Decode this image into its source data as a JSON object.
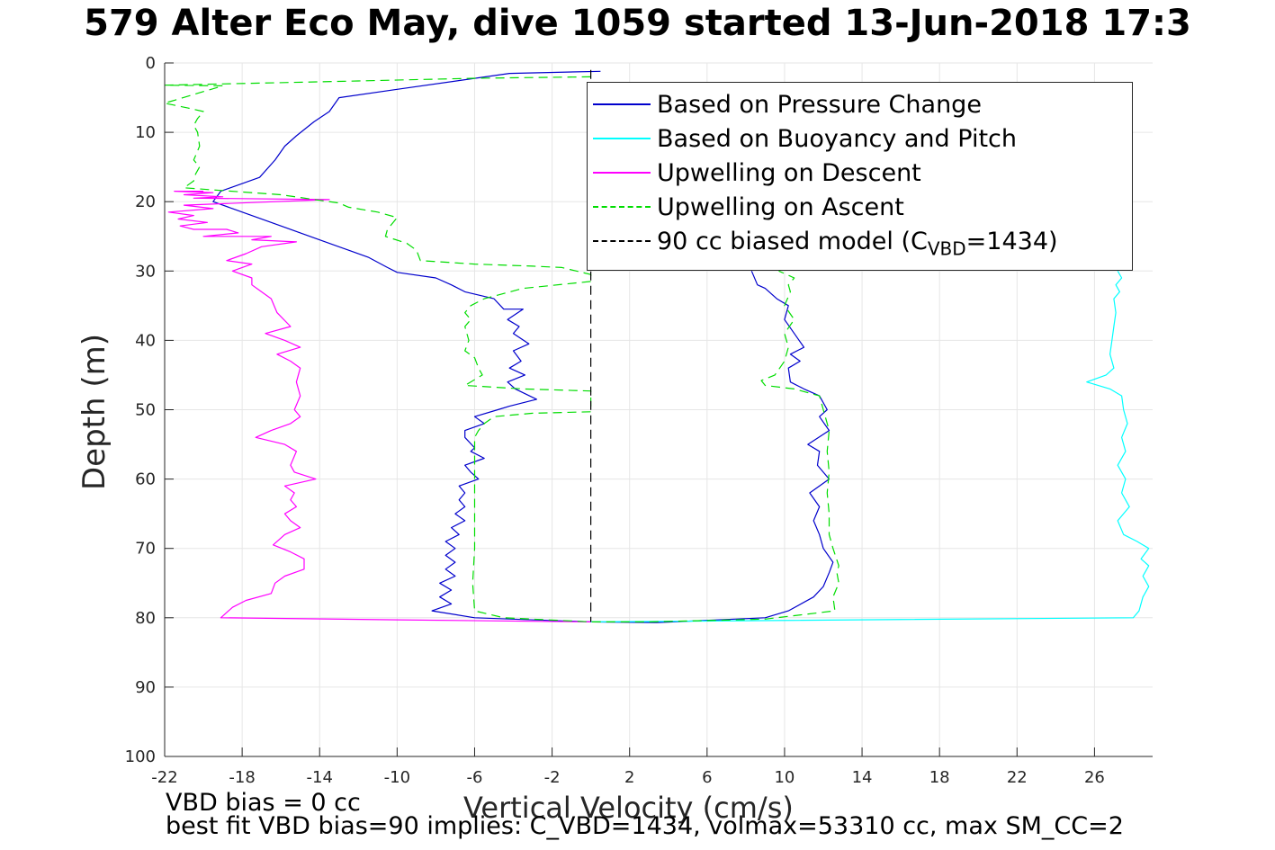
{
  "figure": {
    "title": "579 Alter Eco May, dive 1059 started 13-Jun-2018 17:3",
    "footnote_1": "VBD bias = 0 cc",
    "footnote_2": "best fit VBD bias=90 implies: C_VBD=1434, volmax=53310 cc, max SM_CC=2"
  },
  "chart_data": {
    "type": "line",
    "xlabel": "Vertical Velocity (cm/s)",
    "ylabel": "Depth (m)",
    "xlim": [
      -22,
      29
    ],
    "ylim": [
      0,
      100
    ],
    "y_reversed": true,
    "grid": true,
    "legend_position": "top-right",
    "xticks": [
      -22,
      -18,
      -14,
      -10,
      -6,
      -2,
      2,
      6,
      10,
      14,
      18,
      22,
      26
    ],
    "yticks": [
      0,
      10,
      20,
      30,
      40,
      50,
      60,
      70,
      80,
      90,
      100
    ],
    "series": [
      {
        "name": "Based on Pressure Change",
        "color": "#0000cc",
        "style": "solid",
        "points": [
          [
            0.5,
            1.2
          ],
          [
            -4.2,
            1.5
          ],
          [
            -10,
            3.8
          ],
          [
            -13,
            5
          ],
          [
            -13.5,
            7
          ],
          [
            -14.3,
            8.5
          ],
          [
            -15.2,
            10.5
          ],
          [
            -15.8,
            12
          ],
          [
            -16.3,
            14
          ],
          [
            -17.1,
            16.5
          ],
          [
            -19.1,
            18.5
          ],
          [
            -19.5,
            20
          ],
          [
            -18.5,
            21
          ],
          [
            -16.5,
            23
          ],
          [
            -14.5,
            25
          ],
          [
            -12.5,
            27
          ],
          [
            -11.5,
            28
          ],
          [
            -10.5,
            29.5
          ],
          [
            -10,
            30.2
          ],
          [
            -8,
            31
          ],
          [
            -7.2,
            32
          ],
          [
            -6.5,
            33
          ],
          [
            -5,
            34
          ],
          [
            -4.5,
            35.5
          ],
          [
            -3.5,
            35.5
          ],
          [
            -4.3,
            37
          ],
          [
            -3.7,
            38
          ],
          [
            -4,
            39
          ],
          [
            -3.2,
            40.5
          ],
          [
            -4,
            41.5
          ],
          [
            -3.6,
            43
          ],
          [
            -4.2,
            44
          ],
          [
            -3.4,
            45
          ],
          [
            -4.3,
            46
          ],
          [
            -3.9,
            47
          ],
          [
            -2.8,
            48.5
          ],
          [
            -4.2,
            49.5
          ],
          [
            -4.8,
            50
          ],
          [
            -6,
            51
          ],
          [
            -5.5,
            52
          ],
          [
            -6.5,
            53
          ],
          [
            -6.5,
            54
          ],
          [
            -6,
            55.5
          ],
          [
            -6.2,
            56
          ],
          [
            -5.5,
            57
          ],
          [
            -6.5,
            58
          ],
          [
            -6.2,
            59
          ],
          [
            -5.8,
            60
          ],
          [
            -6.8,
            61
          ],
          [
            -6.5,
            62
          ],
          [
            -6.8,
            63
          ],
          [
            -6.5,
            64
          ],
          [
            -7,
            65
          ],
          [
            -6.5,
            66
          ],
          [
            -7.2,
            67
          ],
          [
            -6.8,
            68
          ],
          [
            -7.5,
            69
          ],
          [
            -7,
            70
          ],
          [
            -7.5,
            71
          ],
          [
            -7,
            72
          ],
          [
            -7.5,
            73
          ],
          [
            -7,
            74
          ],
          [
            -7.8,
            75
          ],
          [
            -7.2,
            76
          ],
          [
            -7.8,
            77
          ],
          [
            -7.2,
            78
          ],
          [
            -8.2,
            79
          ],
          [
            -6,
            80
          ],
          [
            0,
            80.6
          ],
          [
            3.4,
            80.7
          ],
          [
            9,
            80
          ],
          [
            10.2,
            79
          ],
          [
            11.5,
            77
          ],
          [
            12,
            75.5
          ],
          [
            12.3,
            73.5
          ],
          [
            12.5,
            72
          ],
          [
            12,
            70
          ],
          [
            11.8,
            68
          ],
          [
            11.5,
            66
          ],
          [
            11.8,
            64
          ],
          [
            11.3,
            62
          ],
          [
            12.3,
            60
          ],
          [
            11.7,
            58
          ],
          [
            11.8,
            56
          ],
          [
            11.2,
            55
          ],
          [
            12.3,
            53
          ],
          [
            11.8,
            51
          ],
          [
            12.2,
            50
          ],
          [
            11.8,
            48
          ],
          [
            11,
            47
          ],
          [
            10.3,
            46
          ],
          [
            10.2,
            44
          ],
          [
            10.8,
            43
          ],
          [
            10.3,
            42
          ],
          [
            11,
            41
          ],
          [
            10.5,
            39
          ],
          [
            10,
            37
          ],
          [
            10.2,
            35
          ],
          [
            9.6,
            34
          ],
          [
            9,
            32.5
          ],
          [
            8.6,
            32
          ],
          [
            8.3,
            30
          ]
        ]
      },
      {
        "name": "Based on Buoyancy and Pitch",
        "color": "#00ffff",
        "style": "solid",
        "points": [
          [
            0,
            80.6
          ],
          [
            28,
            80
          ],
          [
            28.3,
            79
          ],
          [
            28.5,
            77
          ],
          [
            28.8,
            75.5
          ],
          [
            28.5,
            74
          ],
          [
            28.8,
            72.5
          ],
          [
            28.4,
            71.5
          ],
          [
            28.8,
            70
          ],
          [
            28.2,
            69
          ],
          [
            27.5,
            68
          ],
          [
            27.2,
            66
          ],
          [
            27.8,
            64
          ],
          [
            27.4,
            62
          ],
          [
            27.6,
            60
          ],
          [
            27.2,
            58
          ],
          [
            27.6,
            56
          ],
          [
            27.4,
            54
          ],
          [
            27.7,
            52
          ],
          [
            27.5,
            50
          ],
          [
            27.4,
            48
          ],
          [
            26.8,
            47
          ],
          [
            25.6,
            46
          ],
          [
            26.6,
            45
          ],
          [
            27,
            44
          ],
          [
            26.8,
            42
          ],
          [
            26.9,
            40
          ],
          [
            27,
            38
          ],
          [
            27.1,
            36
          ],
          [
            27,
            34
          ],
          [
            27.3,
            33
          ],
          [
            27.1,
            32
          ],
          [
            27.4,
            31
          ],
          [
            27.2,
            30
          ]
        ]
      },
      {
        "name": "Upwelling on Descent",
        "color": "#ff00ff",
        "style": "solid",
        "points": [
          [
            -20,
            18.5
          ],
          [
            -21.5,
            18.5
          ],
          [
            -19.5,
            18.7
          ],
          [
            -21,
            19
          ],
          [
            -19,
            19.3
          ],
          [
            -20.5,
            19.5
          ],
          [
            -13.5,
            19.7
          ],
          [
            -21,
            20.5
          ],
          [
            -19.5,
            21
          ],
          [
            -21.8,
            21.5
          ],
          [
            -20.5,
            22
          ],
          [
            -21.3,
            22.5
          ],
          [
            -19.8,
            23
          ],
          [
            -21.2,
            23.5
          ],
          [
            -20.5,
            24
          ],
          [
            -18.8,
            24
          ],
          [
            -18.2,
            24.5
          ],
          [
            -20,
            25
          ],
          [
            -16.5,
            25
          ],
          [
            -17.5,
            25.5
          ],
          [
            -15.2,
            25.8
          ],
          [
            -17,
            26.5
          ],
          [
            -17.8,
            27.5
          ],
          [
            -18.8,
            28.5
          ],
          [
            -17.5,
            29
          ],
          [
            -18.5,
            30
          ],
          [
            -17.5,
            31
          ],
          [
            -17.5,
            32
          ],
          [
            -17,
            33
          ],
          [
            -16.5,
            34
          ],
          [
            -16.2,
            36
          ],
          [
            -15.5,
            38
          ],
          [
            -16.8,
            39
          ],
          [
            -15.8,
            40
          ],
          [
            -15,
            41
          ],
          [
            -16.2,
            42
          ],
          [
            -15.5,
            43
          ],
          [
            -15,
            44
          ],
          [
            -15.2,
            46
          ],
          [
            -15,
            48
          ],
          [
            -15.3,
            50
          ],
          [
            -15,
            51
          ],
          [
            -15.5,
            52
          ],
          [
            -16.5,
            53
          ],
          [
            -17.3,
            54
          ],
          [
            -15.8,
            55
          ],
          [
            -15.2,
            56
          ],
          [
            -15.5,
            58
          ],
          [
            -15.3,
            59
          ],
          [
            -14.2,
            60
          ],
          [
            -15.8,
            61
          ],
          [
            -15.3,
            62
          ],
          [
            -15.5,
            63
          ],
          [
            -15.2,
            64
          ],
          [
            -15.8,
            65
          ],
          [
            -15.5,
            66
          ],
          [
            -15,
            67
          ],
          [
            -15.8,
            68
          ],
          [
            -16.4,
            69.5
          ],
          [
            -15.5,
            70.5
          ],
          [
            -14.8,
            71.5
          ],
          [
            -14.8,
            73
          ],
          [
            -15.8,
            74
          ],
          [
            -16.3,
            75
          ],
          [
            -16.5,
            76.5
          ],
          [
            -17.8,
            77.5
          ],
          [
            -18.5,
            78.5
          ],
          [
            -19.1,
            80
          ],
          [
            -10,
            80.3
          ],
          [
            0,
            80.6
          ]
        ]
      },
      {
        "name": "Upwelling on Ascent",
        "color": "#00dd00",
        "style": "dashed",
        "points": [
          [
            0,
            2
          ],
          [
            -6,
            2.2
          ],
          [
            -12,
            2.6
          ],
          [
            -22,
            3.2
          ],
          [
            -19,
            3.3
          ],
          [
            -22,
            5.8
          ],
          [
            -20.8,
            6.5
          ],
          [
            -20,
            7
          ],
          [
            -20.3,
            8
          ],
          [
            -20.5,
            9
          ],
          [
            -20.3,
            10
          ],
          [
            -20.2,
            12
          ],
          [
            -20.5,
            14
          ],
          [
            -20.2,
            15
          ],
          [
            -20.4,
            16
          ],
          [
            -20.5,
            17
          ],
          [
            -21,
            18
          ],
          [
            -16,
            19
          ],
          [
            -14,
            19.8
          ],
          [
            -13,
            20.2
          ],
          [
            -12.5,
            20.8
          ],
          [
            -11,
            21.5
          ],
          [
            -10,
            22.3
          ],
          [
            -10.2,
            23
          ],
          [
            -10.5,
            24
          ],
          [
            -10.6,
            25
          ],
          [
            -9.5,
            26
          ],
          [
            -9,
            27
          ],
          [
            -8.8,
            28.5
          ],
          [
            -6,
            29
          ],
          [
            -3,
            29.3
          ],
          [
            -1.5,
            29.5
          ],
          [
            0,
            30.5
          ],
          [
            0,
            31.5
          ],
          [
            -3.5,
            32.5
          ],
          [
            -5.5,
            34
          ],
          [
            -6.2,
            35
          ],
          [
            -6.5,
            36
          ],
          [
            -6.2,
            37
          ],
          [
            -6.5,
            38
          ],
          [
            -6.3,
            40
          ],
          [
            -6.5,
            41.5
          ],
          [
            -6,
            42.5
          ],
          [
            -5.8,
            44
          ],
          [
            -5.6,
            45
          ],
          [
            -6.5,
            46.5
          ],
          [
            -3.5,
            47
          ],
          [
            0,
            47.3
          ],
          [
            0,
            50.3
          ],
          [
            -3,
            50.5
          ],
          [
            -5,
            51
          ],
          [
            -5.5,
            52
          ],
          [
            -5.8,
            53
          ],
          [
            -6,
            54
          ],
          [
            -6,
            56
          ],
          [
            -6,
            60
          ],
          [
            -6,
            65
          ],
          [
            -6,
            70
          ],
          [
            -6.1,
            75
          ],
          [
            -6,
            79
          ],
          [
            -4.5,
            80
          ],
          [
            0,
            80.6
          ],
          [
            3,
            80.6
          ],
          [
            9,
            80.2
          ],
          [
            12.6,
            79
          ],
          [
            12.5,
            77
          ],
          [
            12.8,
            75
          ],
          [
            12.7,
            73.5
          ],
          [
            12.8,
            72.5
          ],
          [
            12.5,
            70
          ],
          [
            12.3,
            68
          ],
          [
            12.3,
            65
          ],
          [
            12.2,
            62
          ],
          [
            12.3,
            59
          ],
          [
            12.2,
            56
          ],
          [
            12.3,
            53
          ],
          [
            12,
            50
          ],
          [
            11.8,
            48
          ],
          [
            10.5,
            47
          ],
          [
            9,
            46.5
          ],
          [
            8.8,
            45.8
          ],
          [
            9.5,
            45
          ],
          [
            10,
            43
          ],
          [
            10.2,
            41
          ],
          [
            10,
            39
          ],
          [
            10.5,
            37
          ],
          [
            10,
            35
          ],
          [
            10.3,
            33
          ],
          [
            10.2,
            32
          ],
          [
            10.5,
            31
          ],
          [
            9.7,
            30
          ]
        ]
      },
      {
        "name": "90 cc biased model",
        "legend_label_prefix": "90 cc biased model (C",
        "legend_label_sub": "VBD",
        "legend_label_suffix": "=1434)",
        "color": "#000000",
        "style": "dashed",
        "points": [
          [
            0,
            1
          ],
          [
            0,
            80.6
          ]
        ]
      }
    ]
  }
}
